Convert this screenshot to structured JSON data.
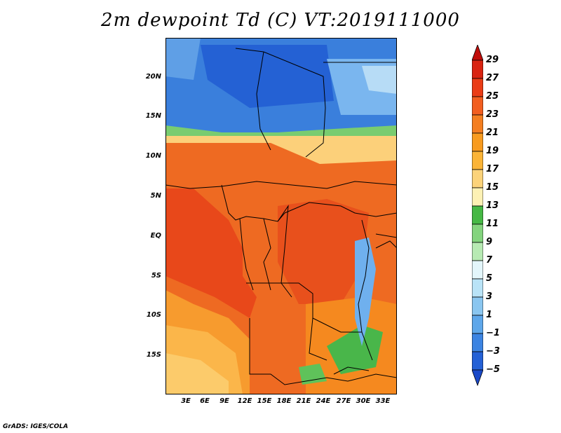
{
  "title": "2m dewpoint Td (C) VT:2019111000",
  "credit": "GrADS: IGES/COLA",
  "map": {
    "lat_labels": [
      "20N",
      "15N",
      "10N",
      "5N",
      "EQ",
      "5S",
      "10S",
      "15S"
    ],
    "lon_labels": [
      "3E",
      "6E",
      "9E",
      "12E",
      "15E",
      "18E",
      "21E",
      "24E",
      "27E",
      "30E",
      "33E"
    ],
    "background_color": "#e8641e"
  },
  "colorbar": {
    "levels": [
      "29",
      "27",
      "25",
      "23",
      "21",
      "19",
      "17",
      "15",
      "13",
      "11",
      "9",
      "7",
      "5",
      "3",
      "1",
      "−1",
      "−3",
      "−5"
    ],
    "colors": [
      "#c00d0a",
      "#d92412",
      "#ea3c16",
      "#f25e1f",
      "#f47e20",
      "#f89b1f",
      "#fbb437",
      "#fcd37a",
      "#fdf1b4",
      "#46b845",
      "#84d47e",
      "#b7eab3",
      "#e3f6fb",
      "#b9e3f7",
      "#8ac6f0",
      "#5ea7ea",
      "#3c84e2",
      "#2461d6",
      "#1a49c8"
    ]
  }
}
